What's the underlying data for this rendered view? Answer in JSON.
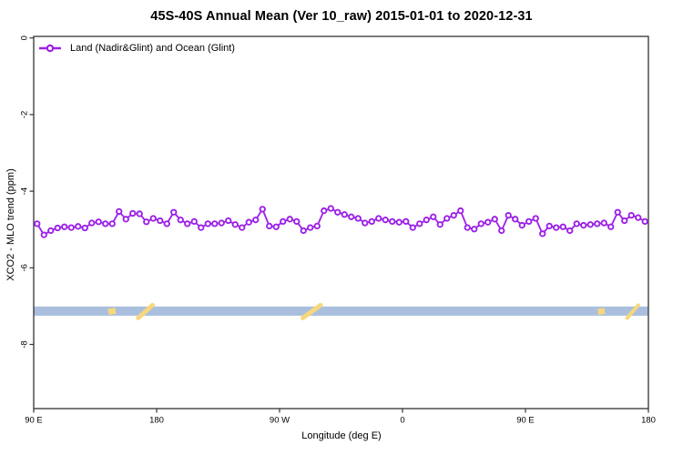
{
  "title": "45S-40S Annual Mean (Ver 10_raw)   2015-01-01 to 2020-12-31",
  "legend": {
    "label": "Land (Nadir&Glint) and Ocean (Glint)",
    "marker": "open-circle-on-line",
    "color": "#9C20E8"
  },
  "colors": {
    "series": "#9C20E8",
    "ocean_band": "#A9BFDD",
    "land_mark": "#F7D77E",
    "axis": "#333333",
    "text": "#000000",
    "background": "#ffffff"
  },
  "chart_data": {
    "type": "line",
    "title": "45S-40S Annual Mean (Ver 10_raw)   2015-01-01 to 2020-12-31",
    "xlabel": "Longitude (deg E)",
    "ylabel": "XCO2 - MLO trend (ppm)",
    "xlim": [
      90,
      540
    ],
    "ylim": [
      -9.72,
      0.04
    ],
    "grid": false,
    "legend_position": "top-left-inside",
    "x_ticks": {
      "positions": [
        90,
        180,
        270,
        360,
        450,
        540
      ],
      "labels": [
        "90 E",
        "180",
        "90 W",
        "0",
        "90 E",
        "180"
      ]
    },
    "y_ticks": {
      "positions": [
        0,
        -2,
        -4,
        -6,
        -8
      ],
      "labels": [
        "0",
        "-2",
        "-4",
        "-6",
        "-8"
      ]
    },
    "series": [
      {
        "name": "Land (Nadir&Glint) and Ocean (Glint)",
        "color": "#9C20E8",
        "marker": "open-circle",
        "x_start": 92.5,
        "x_step": 5,
        "values": [
          -4.85,
          -5.14,
          -5.03,
          -4.96,
          -4.93,
          -4.95,
          -4.92,
          -4.96,
          -4.83,
          -4.8,
          -4.85,
          -4.85,
          -4.53,
          -4.73,
          -4.58,
          -4.59,
          -4.8,
          -4.71,
          -4.77,
          -4.85,
          -4.55,
          -4.75,
          -4.85,
          -4.79,
          -4.95,
          -4.85,
          -4.85,
          -4.83,
          -4.77,
          -4.87,
          -4.95,
          -4.81,
          -4.75,
          -4.47,
          -4.91,
          -4.93,
          -4.79,
          -4.73,
          -4.79,
          -5.03,
          -4.95,
          -4.91,
          -4.51,
          -4.45,
          -4.55,
          -4.61,
          -4.67,
          -4.71,
          -4.83,
          -4.79,
          -4.71,
          -4.75,
          -4.79,
          -4.81,
          -4.79,
          -4.95,
          -4.85,
          -4.75,
          -4.67,
          -4.87,
          -4.71,
          -4.63,
          -4.51,
          -4.95,
          -4.99,
          -4.85,
          -4.81,
          -4.73,
          -5.03,
          -4.63,
          -4.73,
          -4.89,
          -4.79,
          -4.71,
          -5.11,
          -4.91,
          -4.95,
          -4.93,
          -5.03,
          -4.85,
          -4.89,
          -4.87,
          -4.85,
          -4.83,
          -4.93,
          -4.55,
          -4.77,
          -4.63,
          -4.69,
          -4.79
        ]
      }
    ],
    "ocean_band": {
      "description": "ocean/land strip for 45S-40S latitude band",
      "value_top": -7.01,
      "value_bottom": -7.25,
      "color": "#A9BFDD",
      "land_color": "#F7D77E",
      "land_segments": [
        {
          "lon_start": 144.5,
          "lon_end": 150.0,
          "shape": "blob"
        },
        {
          "lon_start": 166.5,
          "lon_end": 177.0,
          "shape": "slant"
        },
        {
          "lon_start": 287.0,
          "lon_end": 300.0,
          "shape": "slant"
        },
        {
          "lon_start": 503.0,
          "lon_end": 508.0,
          "shape": "blob"
        },
        {
          "lon_start": 524.5,
          "lon_end": 532.5,
          "shape": "slant"
        }
      ]
    }
  }
}
